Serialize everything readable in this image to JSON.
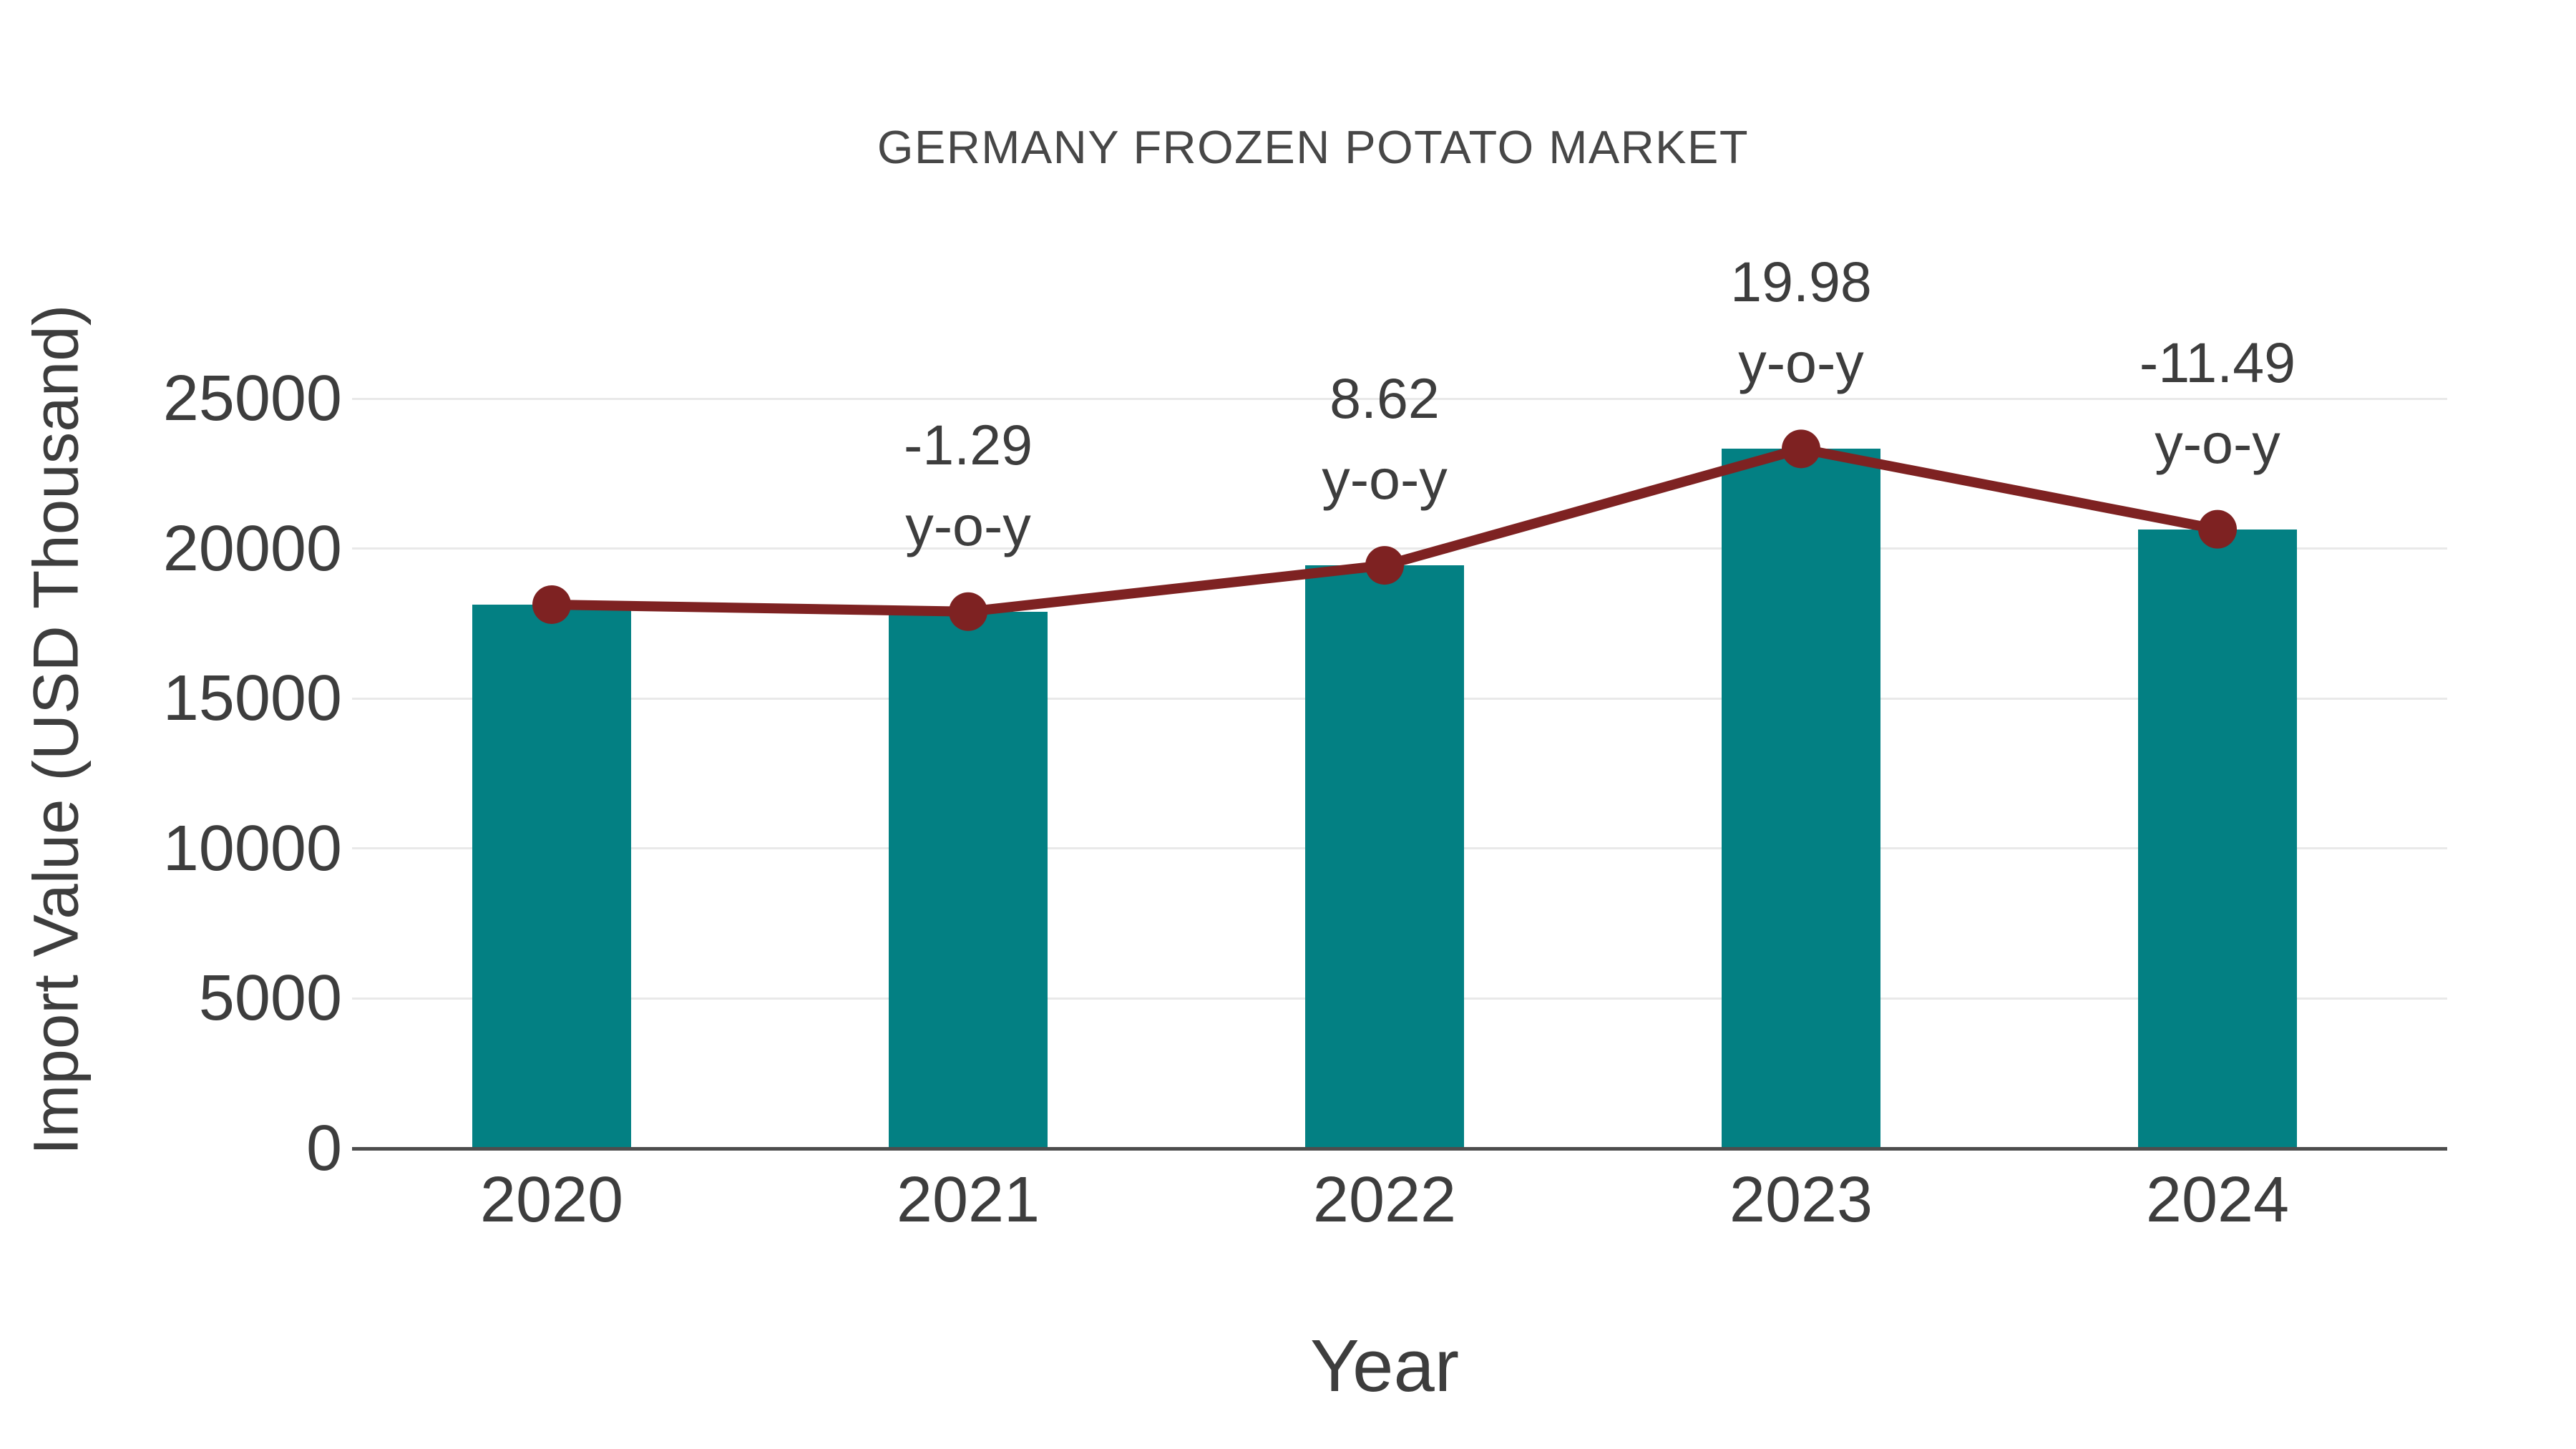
{
  "title": "GERMANY FROZEN POTATO MARKET",
  "colors": {
    "bar": "#038083",
    "line": "#7e2222",
    "marker": "#7e2222",
    "text": "#3d3d3d",
    "title_text": "#474747",
    "gridline": "#e9e9e9",
    "axis_line": "#4d4d4d",
    "background": "#ffffff"
  },
  "chart_data": {
    "type": "bar",
    "title": "GERMANY FROZEN POTATO MARKET",
    "xlabel": "Year",
    "ylabel": "Import Value (USD Thousand)",
    "categories": [
      "2020",
      "2021",
      "2022",
      "2023",
      "2024"
    ],
    "values": [
      18130,
      17896,
      19439,
      23322,
      20642
    ],
    "line_overlay": {
      "name": "y-o-y trend line",
      "values": [
        18130,
        17896,
        19439,
        23322,
        20642
      ]
    },
    "annotations": [
      {
        "category": "2021",
        "value": -1.29,
        "label": "-1.29",
        "suffix": "y-o-y"
      },
      {
        "category": "2022",
        "value": 8.62,
        "label": "8.62",
        "suffix": "y-o-y"
      },
      {
        "category": "2023",
        "value": 19.98,
        "label": "19.98",
        "suffix": "y-o-y"
      },
      {
        "category": "2024",
        "value": -11.49,
        "label": "-11.49",
        "suffix": "y-o-y"
      }
    ],
    "yticks": [
      0,
      5000,
      10000,
      15000,
      20000,
      25000
    ],
    "ylim": [
      0,
      25000
    ],
    "grid": true,
    "legend": "none"
  }
}
